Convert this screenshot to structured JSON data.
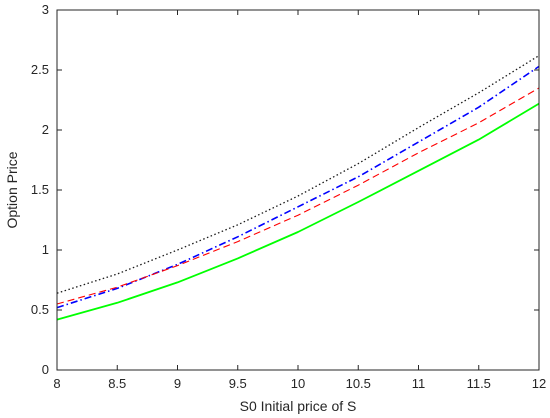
{
  "chart_data": {
    "type": "line",
    "title": "",
    "xlabel": "S0 Initial price of S",
    "ylabel": "Option Price",
    "xlim": [
      8,
      12
    ],
    "ylim": [
      0,
      3
    ],
    "grid": false,
    "legend": "none",
    "x_ticks": [
      8,
      8.5,
      9,
      9.5,
      10,
      10.5,
      11,
      11.5,
      12
    ],
    "x_tick_labels": [
      "8",
      "8.5",
      "9",
      "9.5",
      "10",
      "10.5",
      "11",
      "11.5",
      "12"
    ],
    "y_ticks": [
      0,
      0.5,
      1,
      1.5,
      2,
      2.5,
      3
    ],
    "y_tick_labels": [
      "0",
      "0.5",
      "1",
      "1.5",
      "2",
      "2.5",
      "3"
    ],
    "x": [
      8,
      8.5,
      9,
      9.5,
      10,
      10.5,
      11,
      11.5,
      12
    ],
    "series": [
      {
        "style": "dotted",
        "color": "#1a1a1a",
        "values": [
          0.64,
          0.8,
          1.0,
          1.21,
          1.45,
          1.72,
          2.02,
          2.31,
          2.62
        ]
      },
      {
        "style": "dashdot",
        "color": "#0000ff",
        "values": [
          0.52,
          0.68,
          0.88,
          1.11,
          1.36,
          1.61,
          1.9,
          2.19,
          2.53
        ]
      },
      {
        "style": "dashed",
        "color": "#ff0000",
        "values": [
          0.55,
          0.69,
          0.87,
          1.07,
          1.29,
          1.54,
          1.81,
          2.06,
          2.35
        ]
      },
      {
        "style": "solid",
        "color": "#00ff00",
        "values": [
          0.42,
          0.56,
          0.73,
          0.93,
          1.15,
          1.4,
          1.66,
          1.92,
          2.22
        ]
      }
    ]
  }
}
